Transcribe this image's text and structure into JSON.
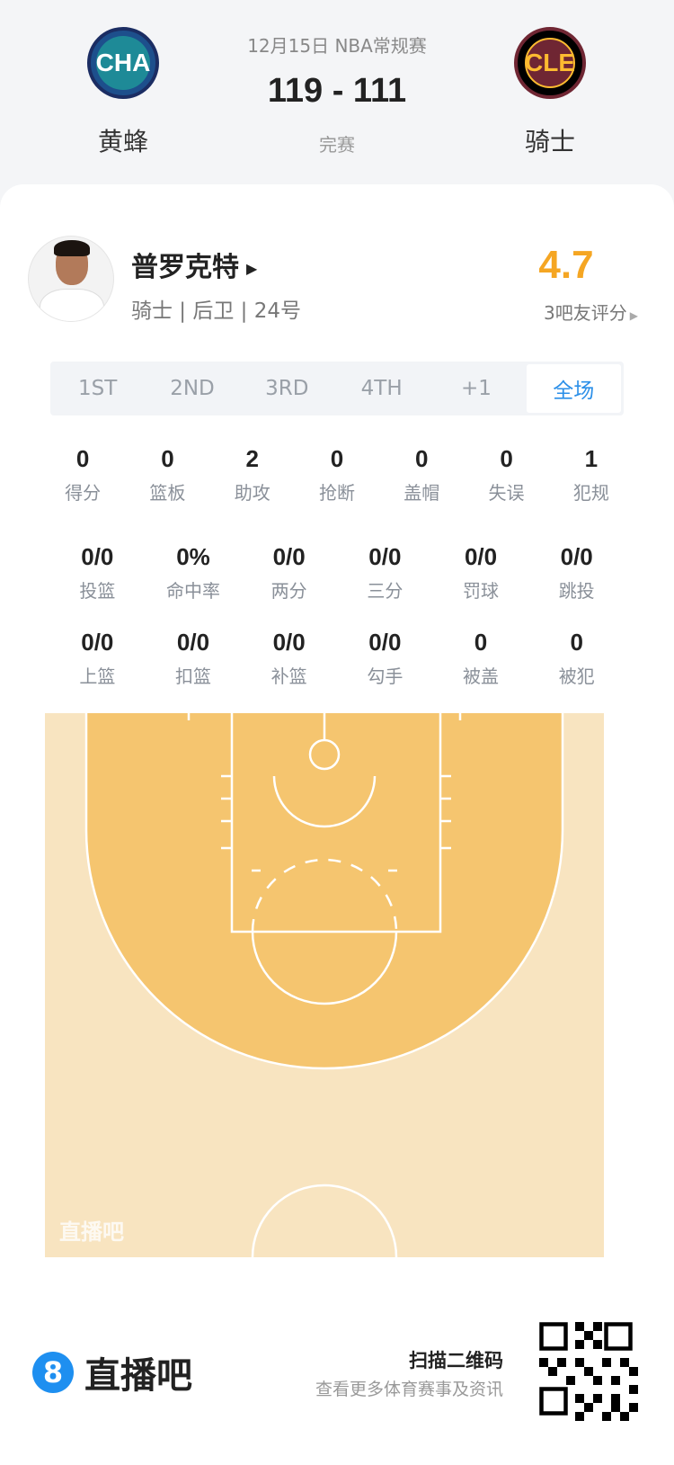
{
  "game": {
    "date_type": "12月15日 NBA常规赛",
    "score": "119 - 111",
    "status": "完赛",
    "home": {
      "abbr": "CHA",
      "name": "黄蜂"
    },
    "away": {
      "abbr": "CLE",
      "name": "骑士"
    }
  },
  "player": {
    "name": "普罗克特",
    "info": "骑士 | 后卫 | 24号",
    "rating": "4.7",
    "rating_label": "3吧友评分",
    "rating_color": "#f5a623"
  },
  "tabs": [
    {
      "label": "1ST"
    },
    {
      "label": "2ND"
    },
    {
      "label": "3RD"
    },
    {
      "label": "4TH"
    },
    {
      "label": "+1"
    },
    {
      "label": "全场",
      "active": true
    }
  ],
  "stats_row1": [
    {
      "v": "0",
      "l": "得分"
    },
    {
      "v": "0",
      "l": "篮板"
    },
    {
      "v": "2",
      "l": "助攻"
    },
    {
      "v": "0",
      "l": "抢断"
    },
    {
      "v": "0",
      "l": "盖帽"
    },
    {
      "v": "0",
      "l": "失误"
    },
    {
      "v": "1",
      "l": "犯规"
    }
  ],
  "stats_row2": [
    {
      "v": "0/0",
      "l": "投篮"
    },
    {
      "v": "0%",
      "l": "命中率"
    },
    {
      "v": "0/0",
      "l": "两分"
    },
    {
      "v": "0/0",
      "l": "三分"
    },
    {
      "v": "0/0",
      "l": "罚球"
    },
    {
      "v": "0/0",
      "l": "跳投"
    }
  ],
  "stats_row3": [
    {
      "v": "0/0",
      "l": "上篮"
    },
    {
      "v": "0/0",
      "l": "扣篮"
    },
    {
      "v": "0/0",
      "l": "补篮"
    },
    {
      "v": "0/0",
      "l": "勾手"
    },
    {
      "v": "0",
      "l": "被盖"
    },
    {
      "v": "0",
      "l": "被犯"
    }
  ],
  "court": {
    "watermark": "直播吧"
  },
  "footer": {
    "brand": "直播吧",
    "scan": "扫描二维码",
    "sub": "查看更多体育赛事及资讯"
  }
}
